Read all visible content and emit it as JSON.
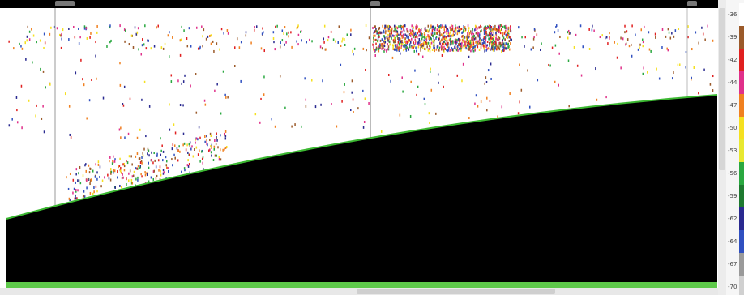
{
  "colorbar": {
    "labels": [
      "-36",
      "-39",
      "-42",
      "-44",
      "-47",
      "-50",
      "-53",
      "-56",
      "-59",
      "-62",
      "-64",
      "-67",
      "-70"
    ]
  }
}
